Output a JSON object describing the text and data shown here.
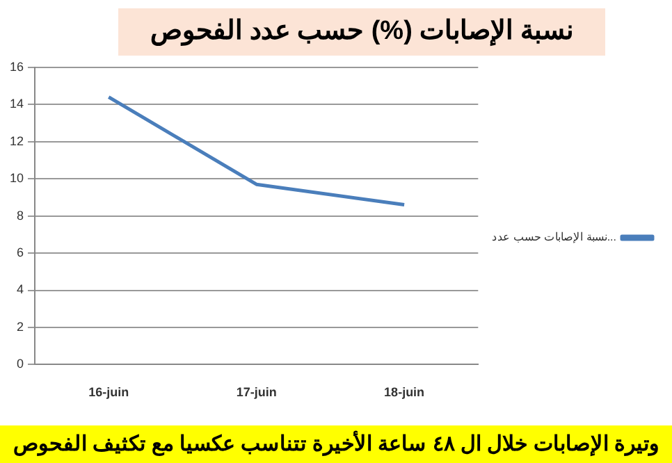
{
  "chart_data": {
    "type": "line",
    "title": "نسبة الإصابات (%) حسب عدد الفحوص",
    "categories": [
      "16-juin",
      "17-juin",
      "18-juin"
    ],
    "series": [
      {
        "name": "نسبة الإصابات حسب عدد...",
        "color": "#4a7ebb",
        "values": [
          14.4,
          9.7,
          8.6
        ]
      }
    ],
    "ylim": [
      0,
      16
    ],
    "yticks": [
      0,
      2,
      4,
      6,
      8,
      10,
      12,
      14,
      16
    ],
    "grid": "y",
    "legend": "right",
    "marker": "none",
    "annotations": [
      "وتيرة الإصابات خلال ال ٤٨ ساعة الأخيرة تتناسب عكسيا مع تكثيف الفحوص"
    ]
  }
}
